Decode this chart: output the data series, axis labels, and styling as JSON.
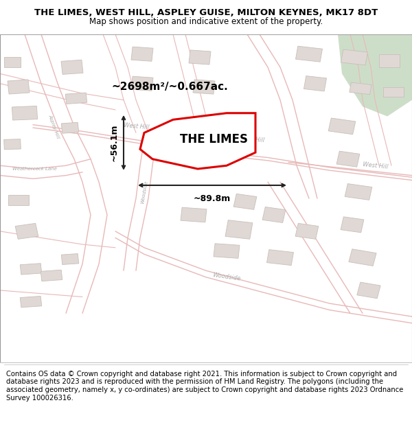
{
  "title_line1": "THE LIMES, WEST HILL, ASPLEY GUISE, MILTON KEYNES, MK17 8DT",
  "title_line2": "Map shows position and indicative extent of the property.",
  "property_label": "THE LIMES",
  "area_label": "~2698m²/~0.667ac.",
  "width_label": "~89.8m",
  "height_label": "~56.1m",
  "footer_text": "Contains OS data © Crown copyright and database right 2021. This information is subject to Crown copyright and database rights 2023 and is reproduced with the permission of HM Land Registry. The polygons (including the associated geometry, namely x, y co-ordinates) are subject to Crown copyright and database rights 2023 Ordnance Survey 100026316.",
  "map_bg": "#f7f3f2",
  "road_line_color": "#e8b8b8",
  "building_fill": "#e0d8d4",
  "building_outline": "#c8bfba",
  "property_outline": "#dd0000",
  "property_fill": "#ffffff",
  "green_area": "#cddec8",
  "annotation_color": "#222222",
  "road_text_color": "#aaaaaa",
  "title_fontsize": 9.5,
  "subtitle_fontsize": 8.5,
  "footer_fontsize": 7.2,
  "title_weight": "normal"
}
